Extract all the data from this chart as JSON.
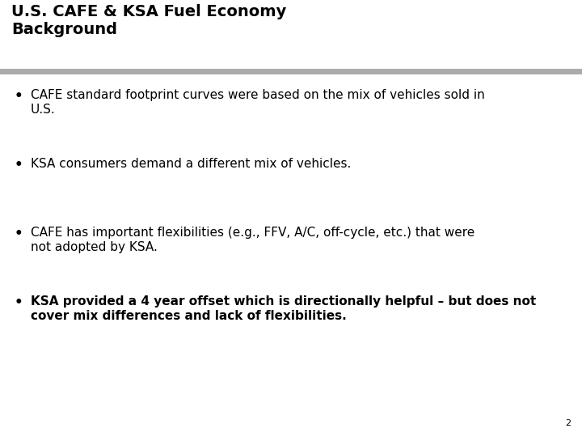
{
  "title_line1": "U.S. CAFE & KSA Fuel Economy",
  "title_line2": "Background",
  "title_fontsize": 14,
  "title_color": "#000000",
  "separator_color": "#aaaaaa",
  "bg_color": "#ffffff",
  "bullet_items": [
    {
      "lines": [
        "CAFE standard footprint curves were based on the mix of vehicles sold in",
        "U.S."
      ],
      "bold": false
    },
    {
      "lines": [
        "KSA consumers demand a different mix of vehicles."
      ],
      "bold": false
    },
    {
      "lines": [
        "CAFE has important flexibilities (e.g., FFV, A/C, off-cycle, etc.) that were",
        "not adopted by KSA."
      ],
      "bold": false
    },
    {
      "lines": [
        "KSA provided a 4 year offset which is directionally helpful – but does not",
        "cover mix differences and lack of flexibilities."
      ],
      "bold": true
    }
  ],
  "bullet_color": "#000000",
  "text_color": "#000000",
  "text_fontsize": 11.0,
  "page_number": "2",
  "page_number_fontsize": 8
}
